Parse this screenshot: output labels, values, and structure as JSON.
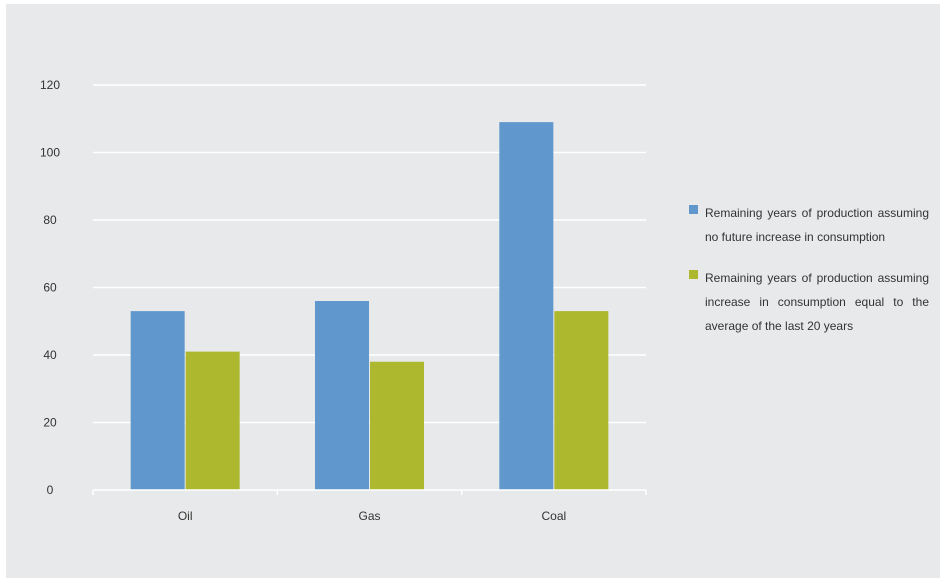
{
  "chart_data": {
    "type": "bar",
    "categories": [
      "Oil",
      "Gas",
      "Coal"
    ],
    "series": [
      {
        "name": "Remaining years of production assuming no future increase in consumption",
        "values": [
          53,
          56,
          109
        ],
        "color": "#6097cd"
      },
      {
        "name": "Remaining years of production assuming increase in consumption equal to the average of the last 20 years",
        "values": [
          41,
          38,
          53
        ],
        "color": "#adb82e"
      }
    ],
    "title": "",
    "xlabel": "",
    "ylabel": "",
    "ylim": [
      0,
      120
    ],
    "yticks": [
      "0",
      "20",
      "40",
      "60",
      "80",
      "100",
      "120"
    ],
    "grid": true,
    "legend_position": "right"
  }
}
